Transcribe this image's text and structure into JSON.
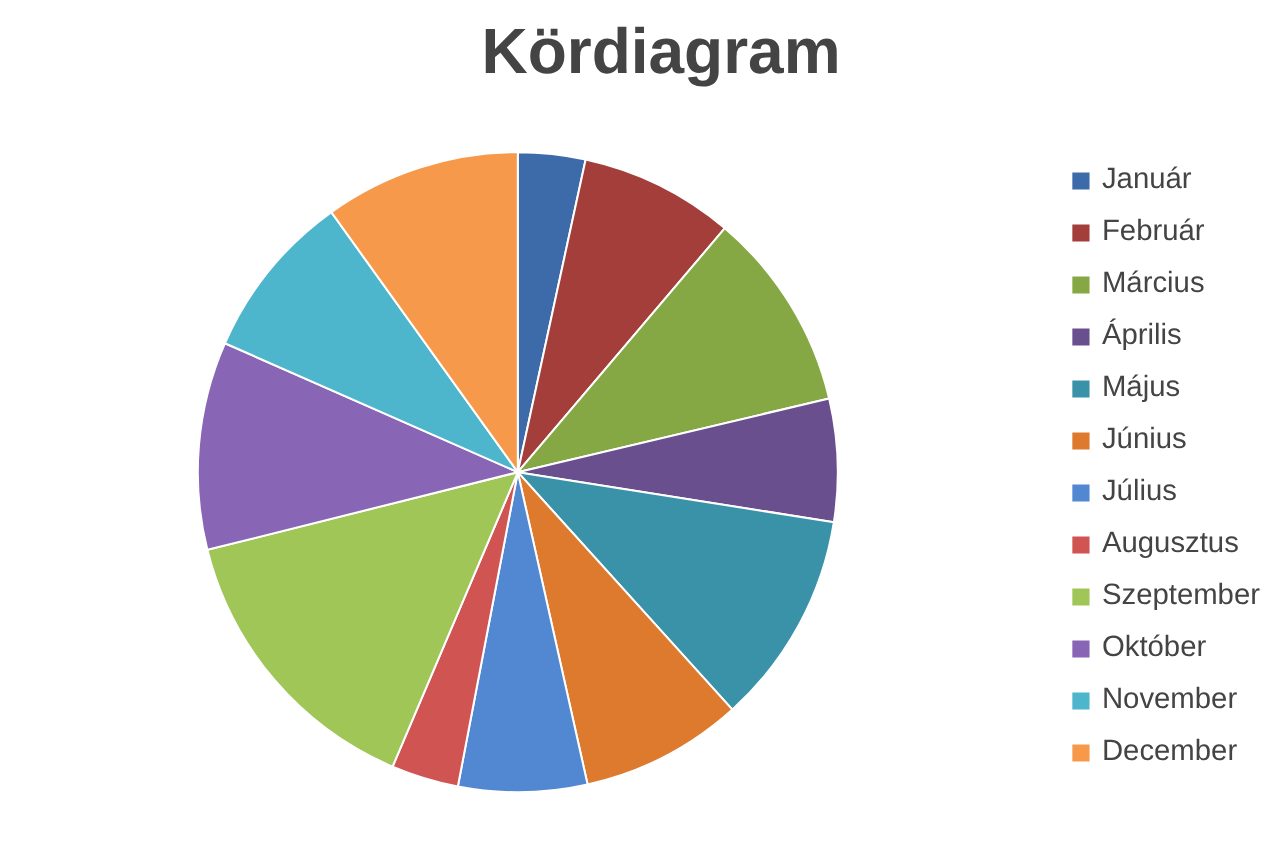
{
  "chart_data": {
    "type": "pie",
    "title": "Kördiagram",
    "categories": [
      "Január",
      "Február",
      "Március",
      "Április",
      "Május",
      "Június",
      "Július",
      "Augusztus",
      "Szeptember",
      "Október",
      "November",
      "December"
    ],
    "values": [
      3.4,
      7.8,
      10.1,
      6.2,
      10.8,
      8.2,
      6.5,
      3.4,
      14.7,
      10.5,
      8.5,
      9.9
    ],
    "colors": [
      "#3d6aa8",
      "#a33e3b",
      "#86a844",
      "#6a4f8e",
      "#3a92a8",
      "#de7a2e",
      "#5287d1",
      "#d05452",
      "#9fc657",
      "#8865b5",
      "#4db6cd",
      "#f7994a"
    ],
    "legend": "right"
  }
}
